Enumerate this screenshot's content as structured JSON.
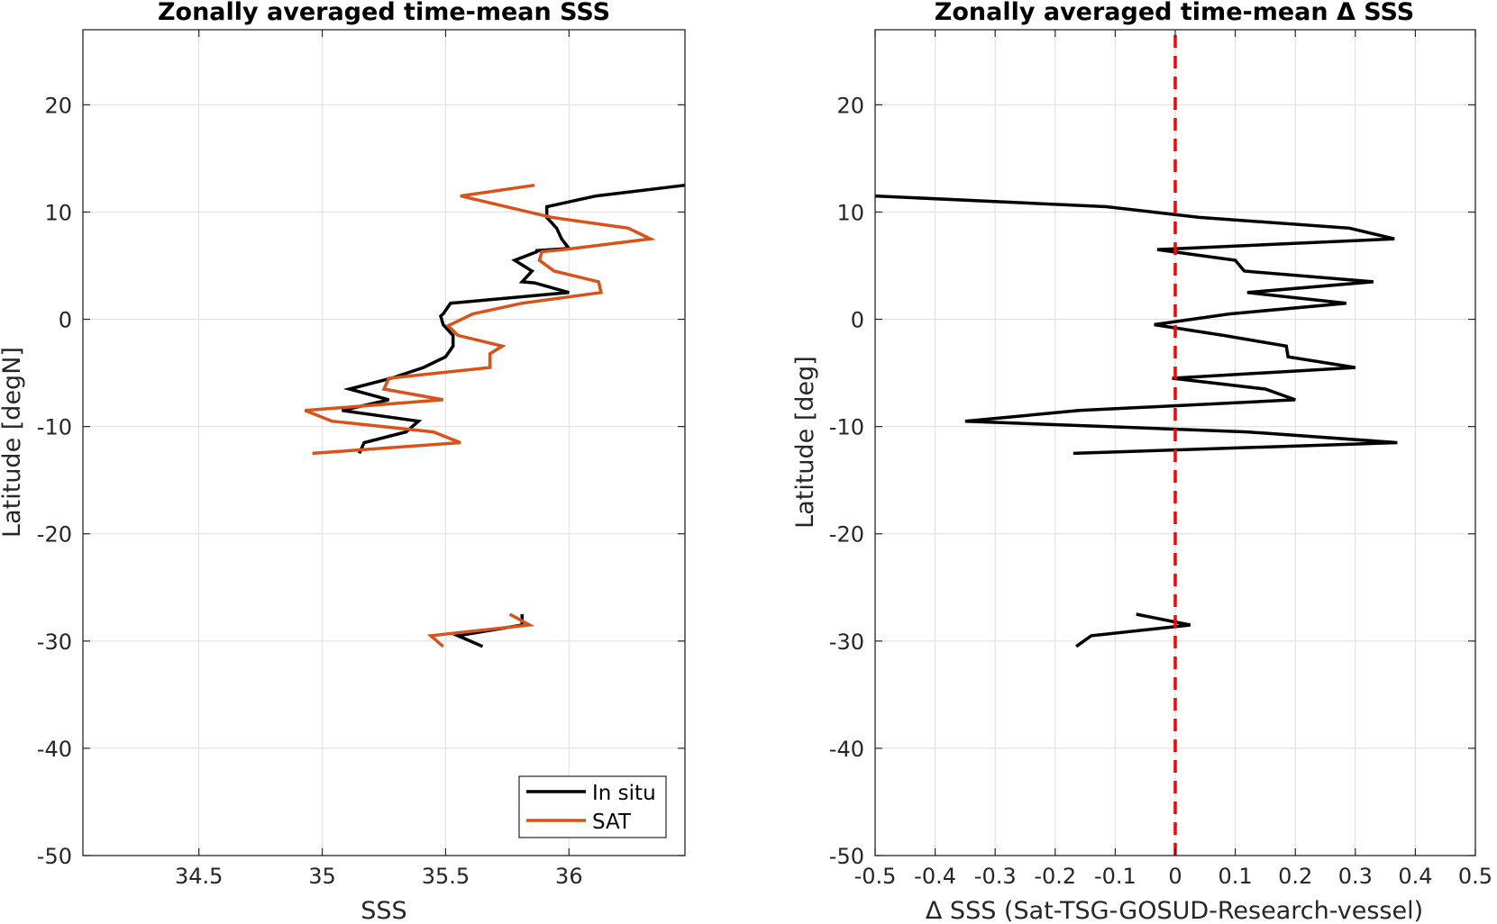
{
  "colors": {
    "insitu": "#000000",
    "sat": "#D95319",
    "delta": "#000000",
    "zero": "#FF0000"
  },
  "chart_data": [
    {
      "type": "line",
      "title": "Zonally averaged time-mean SSS",
      "xlabel": "SSS",
      "ylabel": "Latitude [degN]",
      "xlim": [
        34.03,
        36.47
      ],
      "ylim": [
        -50,
        27
      ],
      "xticks": [
        34.5,
        35,
        35.5,
        36
      ],
      "xtick_labels": [
        "34.5",
        "35",
        "35.5",
        "36"
      ],
      "yticks": [
        -50,
        -40,
        -30,
        -20,
        -10,
        0,
        10,
        20
      ],
      "ytick_labels": [
        "-50",
        "-40",
        "-30",
        "-20",
        "-10",
        "0",
        "10",
        "20"
      ],
      "grid": true,
      "legend": "bottom-right",
      "series": [
        {
          "name": "In situ",
          "color_key": "insitu",
          "segments": [
            [
              [
                36.47,
                12.5
              ],
              [
                36.11,
                11.5
              ],
              [
                35.91,
                10.5
              ],
              [
                35.91,
                9.5
              ],
              [
                35.95,
                8.5
              ],
              [
                35.97,
                7.5
              ],
              [
                36.0,
                6.6
              ],
              [
                35.87,
                6.4
              ],
              [
                35.87,
                6.3
              ],
              [
                35.78,
                5.5
              ],
              [
                35.85,
                4.5
              ],
              [
                35.81,
                3.5
              ],
              [
                35.86,
                3.4
              ],
              [
                36.0,
                2.5
              ],
              [
                35.52,
                1.5
              ],
              [
                35.49,
                0.5
              ],
              [
                35.48,
                0.3
              ],
              [
                35.49,
                -0.5
              ],
              [
                35.53,
                -1.5
              ],
              [
                35.53,
                -2.5
              ],
              [
                35.5,
                -3.5
              ],
              [
                35.41,
                -4.5
              ],
              [
                35.28,
                -5.5
              ],
              [
                35.11,
                -6.5
              ],
              [
                35.27,
                -7.5
              ],
              [
                35.08,
                -8.5
              ],
              [
                35.39,
                -9.5
              ],
              [
                35.34,
                -10.5
              ],
              [
                35.17,
                -11.5
              ],
              [
                35.15,
                -12.5
              ]
            ],
            [
              [
                35.81,
                -27.5
              ],
              [
                35.81,
                -28.5
              ],
              [
                35.55,
                -29.5
              ],
              [
                35.65,
                -30.5
              ]
            ]
          ]
        },
        {
          "name": "SAT",
          "color_key": "sat",
          "segments": [
            [
              [
                35.86,
                12.5
              ],
              [
                35.56,
                11.5
              ],
              [
                35.93,
                9.5
              ],
              [
                36.24,
                8.5
              ],
              [
                36.33,
                7.5
              ],
              [
                35.98,
                6.5
              ],
              [
                35.89,
                6.3
              ],
              [
                35.88,
                5.5
              ],
              [
                35.94,
                4.5
              ],
              [
                36.12,
                3.5
              ],
              [
                36.13,
                2.5
              ],
              [
                35.81,
                1.5
              ],
              [
                35.61,
                0.5
              ],
              [
                35.51,
                -0.6
              ],
              [
                35.55,
                -1.5
              ],
              [
                35.73,
                -2.5
              ],
              [
                35.68,
                -3.2
              ],
              [
                35.68,
                -4.5
              ],
              [
                35.27,
                -5.5
              ],
              [
                35.25,
                -6.5
              ],
              [
                35.49,
                -7.5
              ],
              [
                34.93,
                -8.5
              ],
              [
                35.04,
                -9.5
              ],
              [
                35.45,
                -10.5
              ],
              [
                35.56,
                -11.5
              ],
              [
                34.96,
                -12.5
              ]
            ],
            [
              [
                35.76,
                -27.5
              ],
              [
                35.84,
                -28.5
              ],
              [
                35.44,
                -29.5
              ],
              [
                35.49,
                -30.5
              ]
            ]
          ]
        }
      ]
    },
    {
      "type": "line",
      "title": "Zonally averaged time-mean Δ SSS",
      "xlabel": "Δ SSS (Sat-TSG-GOSUD-Research-vessel)",
      "ylabel": "Latitude [deg]",
      "xlim": [
        -0.5,
        0.5
      ],
      "ylim": [
        -50,
        27
      ],
      "xticks": [
        -0.5,
        -0.4,
        -0.3,
        -0.2,
        -0.1,
        0,
        0.1,
        0.2,
        0.3,
        0.4,
        0.5
      ],
      "xtick_labels": [
        "-0.5",
        "-0.4",
        "-0.3",
        "-0.2",
        "-0.1",
        "0",
        "0.1",
        "0.2",
        "0.3",
        "0.4",
        "0.5"
      ],
      "yticks": [
        -50,
        -40,
        -30,
        -20,
        -10,
        0,
        10,
        20
      ],
      "ytick_labels": [
        "-50",
        "-40",
        "-30",
        "-20",
        "-10",
        "0",
        "10",
        "20"
      ],
      "grid": true,
      "reference_line": {
        "x": 0,
        "style": "dashed",
        "color_key": "zero"
      },
      "series": [
        {
          "color_key": "delta",
          "segments": [
            [
              [
                -0.5,
                11.5
              ],
              [
                -0.115,
                10.5
              ],
              [
                0.04,
                9.5
              ],
              [
                0.29,
                8.5
              ],
              [
                0.365,
                7.5
              ],
              [
                -0.03,
                6.5
              ],
              [
                0.1,
                5.5
              ],
              [
                0.115,
                4.5
              ],
              [
                0.33,
                3.5
              ],
              [
                0.12,
                2.5
              ],
              [
                0.285,
                1.5
              ],
              [
                0.09,
                0.5
              ],
              [
                -0.035,
                -0.5
              ],
              [
                0.08,
                -1.5
              ],
              [
                0.185,
                -2.5
              ],
              [
                0.188,
                -3.5
              ],
              [
                0.3,
                -4.5
              ],
              [
                -0.005,
                -5.5
              ],
              [
                0.15,
                -6.5
              ],
              [
                0.2,
                -7.5
              ],
              [
                -0.16,
                -8.5
              ],
              [
                -0.35,
                -9.5
              ],
              [
                0.12,
                -10.5
              ],
              [
                0.37,
                -11.5
              ],
              [
                -0.17,
                -12.5
              ]
            ],
            [
              [
                -0.065,
                -27.5
              ],
              [
                0.025,
                -28.5
              ],
              [
                -0.14,
                -29.5
              ],
              [
                -0.165,
                -30.5
              ]
            ]
          ]
        }
      ]
    }
  ]
}
